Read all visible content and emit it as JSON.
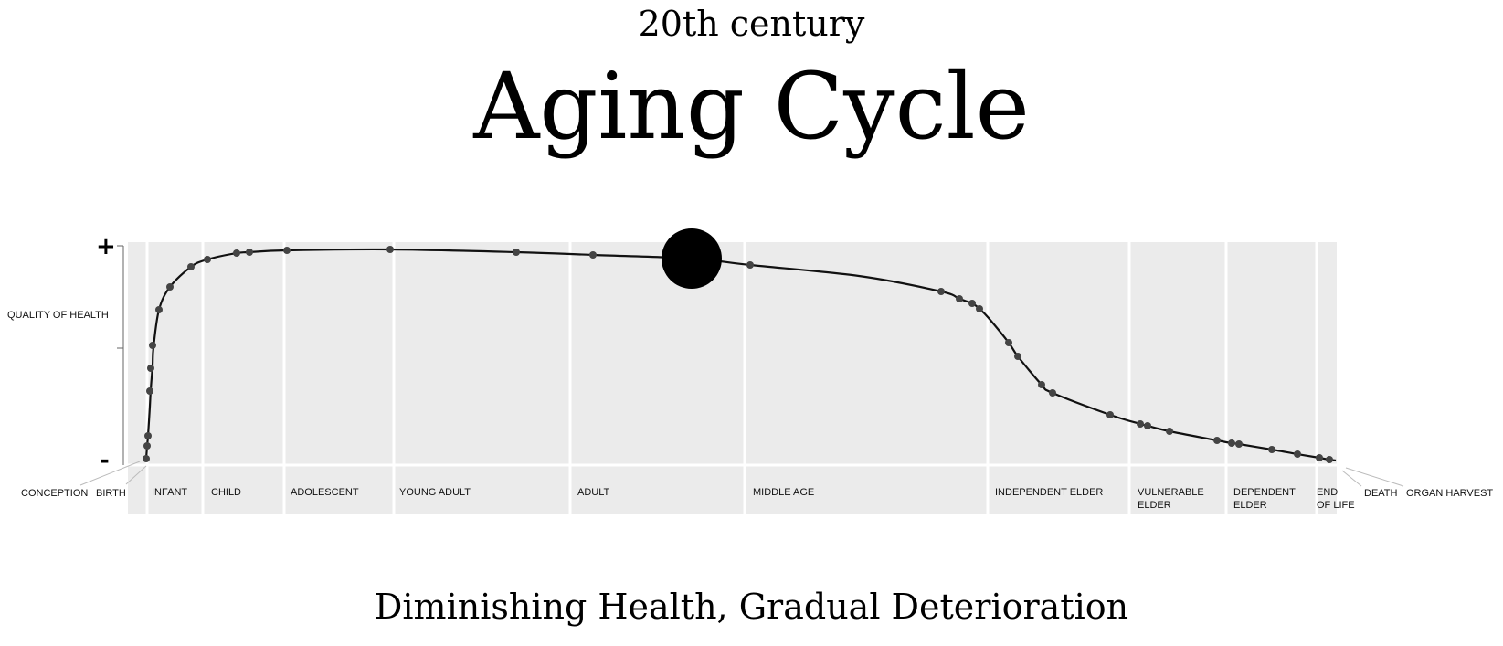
{
  "supertitle": "20th century",
  "title": "Aging Cycle",
  "subtitle": "Diminishing Health, Gradual Deterioration",
  "y_axis": {
    "label": "QUALITY OF HEALTH",
    "top_symbol": "+",
    "bottom_symbol": "-"
  },
  "outer_labels": {
    "conception": "CONCEPTION",
    "birth": "BIRTH",
    "death": "DEATH",
    "organ_harvest": "ORGAN HARVEST"
  },
  "stages": [
    {
      "lines": [
        "INFANT"
      ]
    },
    {
      "lines": [
        "CHILD"
      ]
    },
    {
      "lines": [
        "ADOLESCENT"
      ]
    },
    {
      "lines": [
        "YOUNG ADULT"
      ]
    },
    {
      "lines": [
        "ADULT"
      ]
    },
    {
      "lines": [
        "MIDDLE AGE"
      ]
    },
    {
      "lines": [
        "INDEPENDENT ELDER"
      ]
    },
    {
      "lines": [
        "VULNERABLE",
        "ELDER"
      ]
    },
    {
      "lines": [
        "DEPENDENT",
        "ELDER"
      ]
    },
    {
      "lines": [
        "END",
        "OF LIFE"
      ]
    }
  ],
  "colors": {
    "panel": "#ebebeb",
    "divider": "#ffffff",
    "curve": "#111111",
    "point": "#444444",
    "marker": "#000000"
  }
}
